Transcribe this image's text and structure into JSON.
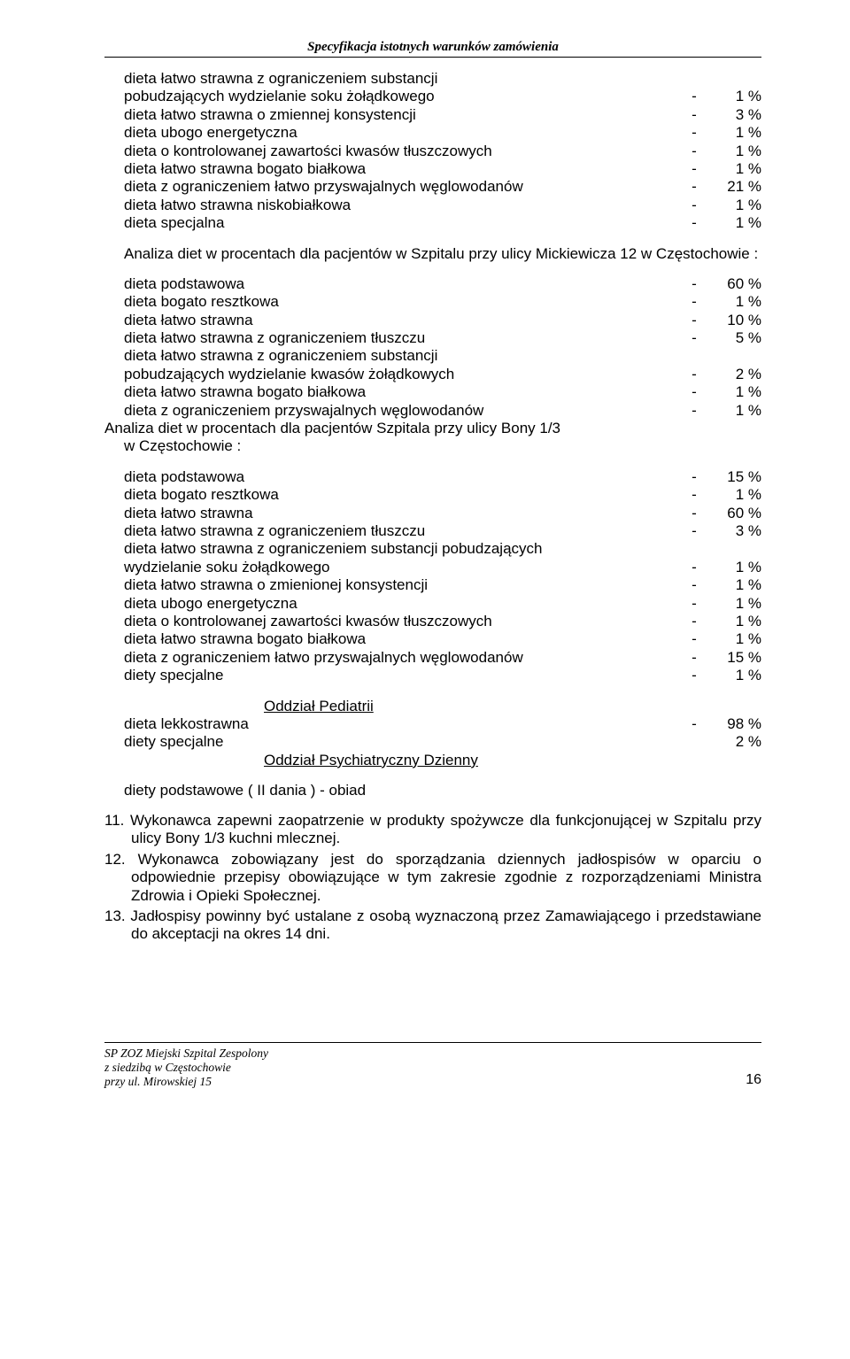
{
  "header": {
    "title": "Specyfikacja istotnych warunków zamówienia"
  },
  "list1": [
    {
      "label": "dieta łatwo strawna z ograniczeniem substancji",
      "cont": true
    },
    {
      "label": "pobudzających wydzielanie soku żołądkowego",
      "dash": "-",
      "val": "1 %"
    },
    {
      "label": "dieta łatwo strawna o zmiennej konsystencji",
      "dash": "-",
      "val": "3 %"
    },
    {
      "label": "dieta ubogo energetyczna",
      "dash": "-",
      "val": "1 %"
    },
    {
      "label": "dieta o kontrolowanej zawartości kwasów tłuszczowych",
      "dash": "-",
      "val": "1 %"
    },
    {
      "label": "dieta łatwo strawna bogato białkowa",
      "dash": "-",
      "val": "1 %"
    },
    {
      "label": "dieta z ograniczeniem łatwo przyswajalnych węglowodanów",
      "dash": "-",
      "val": "21 %"
    },
    {
      "label": "dieta łatwo strawna niskobiałkowa",
      "dash": "-",
      "val": "1 %"
    },
    {
      "label": "dieta specjalna",
      "dash": "-",
      "val": "1 %"
    }
  ],
  "para1": "Analiza diet w procentach dla pacjentów w Szpitalu przy ulicy Mickiewicza 12 w Częstochowie :",
  "list2": [
    {
      "label": "dieta podstawowa",
      "dash": "-",
      "val": "60 %"
    },
    {
      "label": "dieta bogato resztkowa",
      "dash": "-",
      "val": "1 %"
    },
    {
      "label": "dieta łatwo strawna",
      "dash": "-",
      "val": "10 %"
    },
    {
      "label": "dieta łatwo strawna z ograniczeniem tłuszczu",
      "dash": "-",
      "val": "5 %"
    },
    {
      "label": "dieta łatwo strawna z ograniczeniem substancji",
      "cont": true
    },
    {
      "label": "pobudzających wydzielanie kwasów żołądkowych",
      "dash": "-",
      "val": "2 %"
    },
    {
      "label": "dieta łatwo strawna bogato białkowa",
      "dash": "-",
      "val": "1 %"
    },
    {
      "label": "dieta z ograniczeniem przyswajalnych węglowodanów",
      "dash": "-",
      "val": "1 %"
    }
  ],
  "para2a": "Analiza diet w procentach dla pacjentów Szpitala przy ulicy Bony 1/3",
  "para2b": "w Częstochowie :",
  "list3": [
    {
      "label": "dieta podstawowa",
      "dash": "-",
      "val": "15 %"
    },
    {
      "label": "dieta bogato resztkowa",
      "dash": "-",
      "val": "1 %"
    },
    {
      "label": "dieta łatwo strawna",
      "dash": "-",
      "val": "60 %"
    },
    {
      "label": "dieta łatwo strawna z ograniczeniem tłuszczu",
      "dash": "-",
      "val": "3 %"
    },
    {
      "label": "dieta łatwo strawna z ograniczeniem substancji pobudzających",
      "cont": true
    },
    {
      "label": "wydzielanie soku żołądkowego",
      "dash": "-",
      "val": "1 %"
    },
    {
      "label": "dieta łatwo strawna o zmienionej konsystencji",
      "dash": "-",
      "val": "1 %"
    },
    {
      "label": "dieta ubogo energetyczna",
      "dash": "-",
      "val": "1 %"
    },
    {
      "label": "dieta o kontrolowanej zawartości kwasów tłuszczowych",
      "dash": "-",
      "val": "1 %"
    },
    {
      "label": "dieta łatwo strawna bogato białkowa",
      "dash": "-",
      "val": "1 %"
    },
    {
      "label": "dieta z ograniczeniem łatwo przyswajalnych węglowodanów",
      "dash": "-",
      "val": "15 %"
    },
    {
      "label": "diety specjalne",
      "dash": "-",
      "val": "1 %"
    }
  ],
  "section_pedia": "Oddział Pediatrii",
  "list4": [
    {
      "label": "dieta lekkostrawna",
      "dash": "-",
      "val": "98 %"
    },
    {
      "label": "diety specjalne",
      "dash": "",
      "val": "2 %"
    }
  ],
  "section_psych": "Oddział Psychiatryczny Dzienny",
  "single": "diety podstawowe ( II dania ) - obiad",
  "numbered": [
    {
      "n": "11.",
      "text": "Wykonawca zapewni zaopatrzenie w produkty spożywcze dla funkcjonującej w Szpitalu przy ulicy Bony 1/3 kuchni mlecznej."
    },
    {
      "n": "12.",
      "text": "Wykonawca zobowiązany jest do sporządzania dziennych jadłospisów w oparciu o odpowiednie przepisy obowiązujące w tym zakresie zgodnie z rozporządzeniami Ministra Zdrowia i Opieki Społecznej."
    },
    {
      "n": "13.",
      "text": "Jadłospisy powinny być ustalane z osobą wyznaczoną przez Zamawiającego i przedstawiane do akceptacji na okres 14 dni."
    }
  ],
  "footer": {
    "l1": "SP ZOZ  Miejski Szpital Zespolony",
    "l2": "z siedzibą w Częstochowie",
    "l3": "przy ul. Mirowskiej 15",
    "page": "16"
  }
}
